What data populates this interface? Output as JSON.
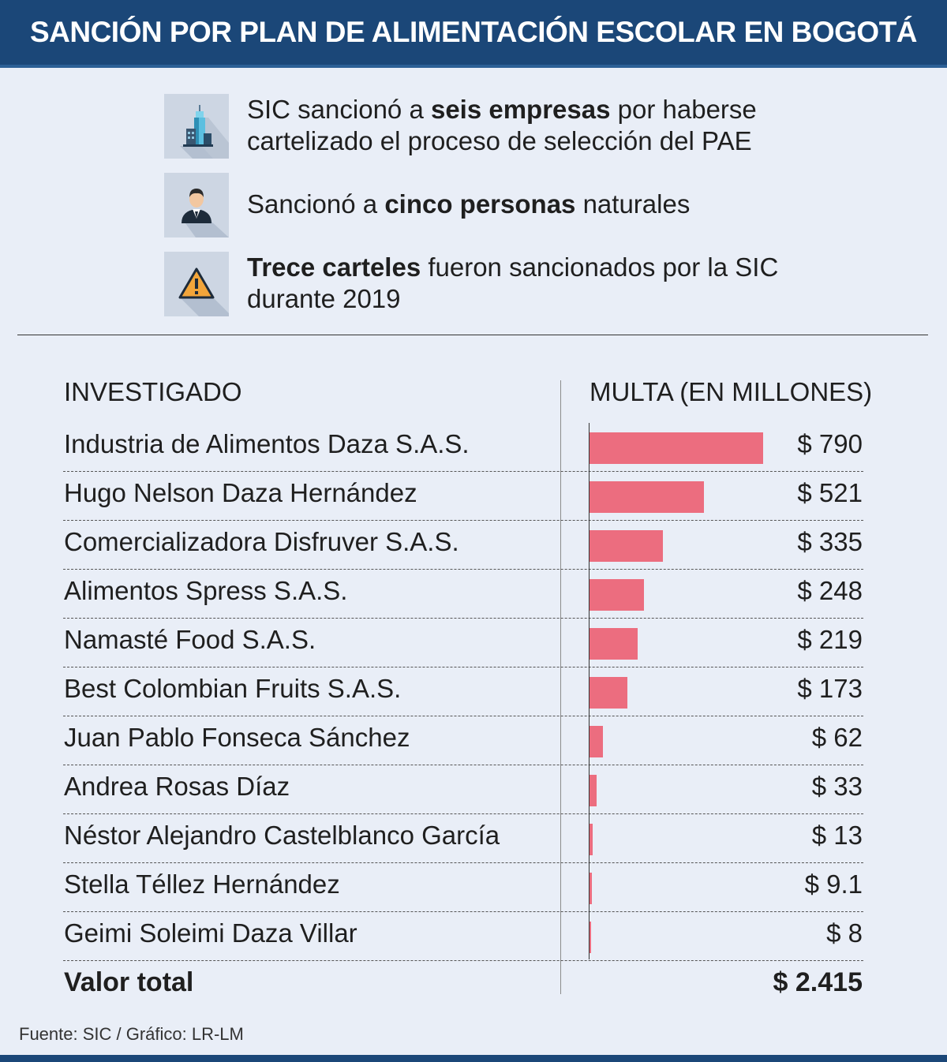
{
  "header": {
    "title": "SANCIÓN POR PLAN DE ALIMENTACIÓN ESCOLAR EN BOGOTÁ"
  },
  "facts": [
    {
      "icon": "building-icon",
      "before": "SIC sancionó a ",
      "bold": "seis empresas",
      "after": " por haberse cartelizado el proceso de selección del PAE"
    },
    {
      "icon": "person-icon",
      "before": "Sancionó a ",
      "bold": "cinco personas",
      "after": " naturales"
    },
    {
      "icon": "warning-icon",
      "before": "",
      "bold": "Trece carteles",
      "after": " fueron sancionados por la SIC durante 2019"
    }
  ],
  "colors": {
    "header": "#1b4778",
    "bar": "#ec6d7f",
    "background": "#e9eef7",
    "icon_bg": "#cdd6e3"
  },
  "chart_data": {
    "type": "bar",
    "orientation": "horizontal",
    "category_header": "INVESTIGADO",
    "value_header": "MULTA (EN MILLONES)",
    "categories": [
      "Industria de Alimentos Daza S.A.S.",
      "Hugo Nelson Daza Hernández",
      "Comercializadora Disfruver S.A.S.",
      "Alimentos Spress S.A.S.",
      "Namasté Food S.A.S.",
      "Best Colombian Fruits S.A.S.",
      "Juan Pablo Fonseca Sánchez",
      "Andrea Rosas Díaz",
      "Néstor Alejandro Castelblanco García",
      "Stella Téllez Hernández",
      "Geimi Soleimi Daza Villar"
    ],
    "values": [
      790,
      521,
      335,
      248,
      219,
      173,
      62,
      33,
      13,
      9.1,
      8
    ],
    "value_labels": [
      "$ 790",
      "$ 521",
      "$ 335",
      "$ 248",
      "$ 219",
      "$ 173",
      "$ 62",
      "$ 33",
      "$ 13",
      "$ 9.1",
      "$ 8"
    ],
    "total_label": "Valor total",
    "total_value": "$ 2.415",
    "xlim": [
      0,
      790
    ],
    "grid": false,
    "legend": "none"
  },
  "footer": {
    "source": "Fuente: SIC / Gráfico: LR-LM"
  }
}
